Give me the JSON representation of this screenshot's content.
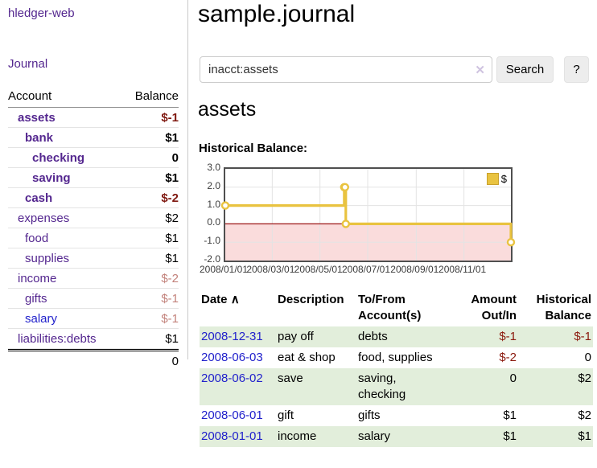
{
  "app": {
    "brand": "hledger-web"
  },
  "sidebar": {
    "journal_link": "Journal",
    "accounts_table": {
      "headers": [
        "Account",
        "Balance"
      ],
      "rows": [
        {
          "name": "assets",
          "indent": 1,
          "bold": true,
          "balance": "$-1",
          "balance_style": "neg-strong",
          "link_style": "purple"
        },
        {
          "name": "bank",
          "indent": 2,
          "bold": true,
          "balance": "$1",
          "balance_style": "pos",
          "link_style": "purple"
        },
        {
          "name": "checking",
          "indent": 3,
          "bold": true,
          "balance": "0",
          "balance_style": "pos",
          "link_style": "purple"
        },
        {
          "name": "saving",
          "indent": 3,
          "bold": true,
          "balance": "$1",
          "balance_style": "pos",
          "link_style": "purple"
        },
        {
          "name": "cash",
          "indent": 2,
          "bold": true,
          "balance": "$-2",
          "balance_style": "neg-strong",
          "link_style": "purple"
        },
        {
          "name": "expenses",
          "indent": 1,
          "bold": false,
          "balance": "$2",
          "balance_style": "pos",
          "link_style": "purple"
        },
        {
          "name": "food",
          "indent": 2,
          "bold": false,
          "balance": "$1",
          "balance_style": "pos",
          "link_style": "purple"
        },
        {
          "name": "supplies",
          "indent": 2,
          "bold": false,
          "balance": "$1",
          "balance_style": "pos",
          "link_style": "purple"
        },
        {
          "name": "income",
          "indent": 1,
          "bold": false,
          "balance": "$-2",
          "balance_style": "neg-soft",
          "link_style": "purple"
        },
        {
          "name": "gifts",
          "indent": 2,
          "bold": false,
          "balance": "$-1",
          "balance_style": "neg-soft",
          "link_style": "purple"
        },
        {
          "name": "salary",
          "indent": 2,
          "bold": false,
          "balance": "$-1",
          "balance_style": "neg-soft",
          "link_style": "blue"
        },
        {
          "name": "liabilities:debts",
          "indent": 1,
          "bold": false,
          "balance": "$1",
          "balance_style": "pos",
          "link_style": "purple"
        }
      ],
      "total": "0"
    }
  },
  "main": {
    "title": "sample.journal",
    "search": {
      "value": "inacct:assets",
      "clear_icon": "✕",
      "search_button": "Search",
      "help_button": "?"
    },
    "account_heading": "assets",
    "chart_heading": "Historical Balance:"
  },
  "chart_data": {
    "type": "line",
    "title": "Historical Balance:",
    "series": [
      {
        "name": "$",
        "color": "#e9c340",
        "step": true,
        "points": [
          [
            "2008-01-01",
            1
          ],
          [
            "2008-06-01",
            2
          ],
          [
            "2008-06-02",
            2
          ],
          [
            "2008-06-03",
            0
          ],
          [
            "2008-12-31",
            -1
          ]
        ]
      }
    ],
    "x_ticks": [
      "2008/01/01",
      "2008/03/01",
      "2008/05/01",
      "2008/07/01",
      "2008/09/01",
      "2008/11/01"
    ],
    "y_ticks": [
      3.0,
      2.0,
      1.0,
      0.0,
      -1.0,
      -2.0
    ],
    "xlim": [
      "2008-01-01",
      "2008-12-31"
    ],
    "ylim": [
      -2,
      3
    ],
    "grid": true,
    "negative_region_color": "#fadcdc",
    "zero_line_color": "#9b1313",
    "legend": {
      "label": "$",
      "position": "top-right"
    }
  },
  "register": {
    "headers": [
      {
        "line1": "Date",
        "sort_icon": "∧",
        "align": "left"
      },
      {
        "line1": "Description",
        "align": "left"
      },
      {
        "line1": "To/From",
        "line2": "Account(s)",
        "align": "left"
      },
      {
        "line1": "Amount",
        "line2": "Out/In",
        "align": "right"
      },
      {
        "line1": "Historical",
        "line2": "Balance",
        "align": "right"
      }
    ],
    "rows": [
      {
        "date": "2008-12-31",
        "description": "pay off",
        "accounts": "debts",
        "amount": "$-1",
        "amount_neg": true,
        "balance": "$-1",
        "balance_neg": true
      },
      {
        "date": "2008-06-03",
        "description": "eat & shop",
        "accounts": "food, supplies",
        "amount": "$-2",
        "amount_neg": true,
        "balance": "0",
        "balance_neg": false
      },
      {
        "date": "2008-06-02",
        "description": "save",
        "accounts": "saving, checking",
        "amount": "0",
        "amount_neg": false,
        "balance": "$2",
        "balance_neg": false
      },
      {
        "date": "2008-06-01",
        "description": "gift",
        "accounts": "gifts",
        "amount": "$1",
        "amount_neg": false,
        "balance": "$2",
        "balance_neg": false
      },
      {
        "date": "2008-01-01",
        "description": "income",
        "accounts": "salary",
        "amount": "$1",
        "amount_neg": false,
        "balance": "$1",
        "balance_neg": false
      }
    ]
  },
  "colors": {
    "accent_purple": "#54278f",
    "link_blue": "#2222cc",
    "neg_strong": "#7f1810",
    "neg_soft": "#c2817a",
    "row_green": "#e2eedb",
    "series_yellow": "#e9c340"
  }
}
